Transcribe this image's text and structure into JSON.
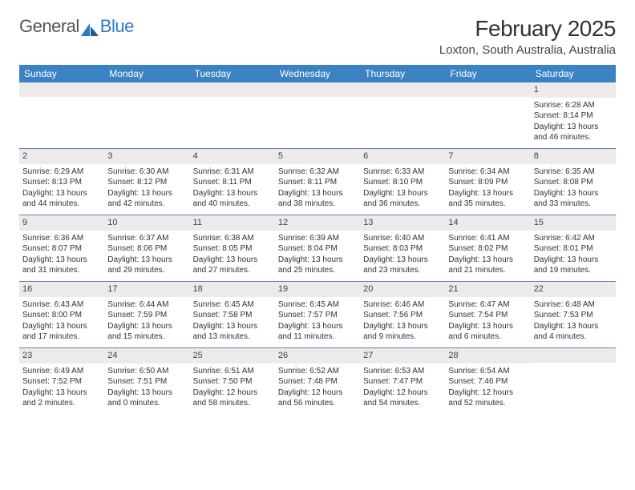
{
  "logo": {
    "text1": "General",
    "text2": "Blue"
  },
  "title": "February 2025",
  "location": "Loxton, South Australia, Australia",
  "colors": {
    "header_bg": "#3b82c4",
    "header_text": "#ffffff",
    "daynum_bg": "#eceaea",
    "border": "#5a84b5",
    "body_text": "#333333",
    "logo_gray": "#555555",
    "logo_blue": "#2d7bc0"
  },
  "dayNames": [
    "Sunday",
    "Monday",
    "Tuesday",
    "Wednesday",
    "Thursday",
    "Friday",
    "Saturday"
  ],
  "weeks": [
    [
      {
        "n": "",
        "lines": []
      },
      {
        "n": "",
        "lines": []
      },
      {
        "n": "",
        "lines": []
      },
      {
        "n": "",
        "lines": []
      },
      {
        "n": "",
        "lines": []
      },
      {
        "n": "",
        "lines": []
      },
      {
        "n": "1",
        "lines": [
          "Sunrise: 6:28 AM",
          "Sunset: 8:14 PM",
          "Daylight: 13 hours and 46 minutes."
        ]
      }
    ],
    [
      {
        "n": "2",
        "lines": [
          "Sunrise: 6:29 AM",
          "Sunset: 8:13 PM",
          "Daylight: 13 hours and 44 minutes."
        ]
      },
      {
        "n": "3",
        "lines": [
          "Sunrise: 6:30 AM",
          "Sunset: 8:12 PM",
          "Daylight: 13 hours and 42 minutes."
        ]
      },
      {
        "n": "4",
        "lines": [
          "Sunrise: 6:31 AM",
          "Sunset: 8:11 PM",
          "Daylight: 13 hours and 40 minutes."
        ]
      },
      {
        "n": "5",
        "lines": [
          "Sunrise: 6:32 AM",
          "Sunset: 8:11 PM",
          "Daylight: 13 hours and 38 minutes."
        ]
      },
      {
        "n": "6",
        "lines": [
          "Sunrise: 6:33 AM",
          "Sunset: 8:10 PM",
          "Daylight: 13 hours and 36 minutes."
        ]
      },
      {
        "n": "7",
        "lines": [
          "Sunrise: 6:34 AM",
          "Sunset: 8:09 PM",
          "Daylight: 13 hours and 35 minutes."
        ]
      },
      {
        "n": "8",
        "lines": [
          "Sunrise: 6:35 AM",
          "Sunset: 8:08 PM",
          "Daylight: 13 hours and 33 minutes."
        ]
      }
    ],
    [
      {
        "n": "9",
        "lines": [
          "Sunrise: 6:36 AM",
          "Sunset: 8:07 PM",
          "Daylight: 13 hours and 31 minutes."
        ]
      },
      {
        "n": "10",
        "lines": [
          "Sunrise: 6:37 AM",
          "Sunset: 8:06 PM",
          "Daylight: 13 hours and 29 minutes."
        ]
      },
      {
        "n": "11",
        "lines": [
          "Sunrise: 6:38 AM",
          "Sunset: 8:05 PM",
          "Daylight: 13 hours and 27 minutes."
        ]
      },
      {
        "n": "12",
        "lines": [
          "Sunrise: 6:39 AM",
          "Sunset: 8:04 PM",
          "Daylight: 13 hours and 25 minutes."
        ]
      },
      {
        "n": "13",
        "lines": [
          "Sunrise: 6:40 AM",
          "Sunset: 8:03 PM",
          "Daylight: 13 hours and 23 minutes."
        ]
      },
      {
        "n": "14",
        "lines": [
          "Sunrise: 6:41 AM",
          "Sunset: 8:02 PM",
          "Daylight: 13 hours and 21 minutes."
        ]
      },
      {
        "n": "15",
        "lines": [
          "Sunrise: 6:42 AM",
          "Sunset: 8:01 PM",
          "Daylight: 13 hours and 19 minutes."
        ]
      }
    ],
    [
      {
        "n": "16",
        "lines": [
          "Sunrise: 6:43 AM",
          "Sunset: 8:00 PM",
          "Daylight: 13 hours and 17 minutes."
        ]
      },
      {
        "n": "17",
        "lines": [
          "Sunrise: 6:44 AM",
          "Sunset: 7:59 PM",
          "Daylight: 13 hours and 15 minutes."
        ]
      },
      {
        "n": "18",
        "lines": [
          "Sunrise: 6:45 AM",
          "Sunset: 7:58 PM",
          "Daylight: 13 hours and 13 minutes."
        ]
      },
      {
        "n": "19",
        "lines": [
          "Sunrise: 6:45 AM",
          "Sunset: 7:57 PM",
          "Daylight: 13 hours and 11 minutes."
        ]
      },
      {
        "n": "20",
        "lines": [
          "Sunrise: 6:46 AM",
          "Sunset: 7:56 PM",
          "Daylight: 13 hours and 9 minutes."
        ]
      },
      {
        "n": "21",
        "lines": [
          "Sunrise: 6:47 AM",
          "Sunset: 7:54 PM",
          "Daylight: 13 hours and 6 minutes."
        ]
      },
      {
        "n": "22",
        "lines": [
          "Sunrise: 6:48 AM",
          "Sunset: 7:53 PM",
          "Daylight: 13 hours and 4 minutes."
        ]
      }
    ],
    [
      {
        "n": "23",
        "lines": [
          "Sunrise: 6:49 AM",
          "Sunset: 7:52 PM",
          "Daylight: 13 hours and 2 minutes."
        ]
      },
      {
        "n": "24",
        "lines": [
          "Sunrise: 6:50 AM",
          "Sunset: 7:51 PM",
          "Daylight: 13 hours and 0 minutes."
        ]
      },
      {
        "n": "25",
        "lines": [
          "Sunrise: 6:51 AM",
          "Sunset: 7:50 PM",
          "Daylight: 12 hours and 58 minutes."
        ]
      },
      {
        "n": "26",
        "lines": [
          "Sunrise: 6:52 AM",
          "Sunset: 7:48 PM",
          "Daylight: 12 hours and 56 minutes."
        ]
      },
      {
        "n": "27",
        "lines": [
          "Sunrise: 6:53 AM",
          "Sunset: 7:47 PM",
          "Daylight: 12 hours and 54 minutes."
        ]
      },
      {
        "n": "28",
        "lines": [
          "Sunrise: 6:54 AM",
          "Sunset: 7:46 PM",
          "Daylight: 12 hours and 52 minutes."
        ]
      },
      {
        "n": "",
        "lines": []
      }
    ]
  ]
}
